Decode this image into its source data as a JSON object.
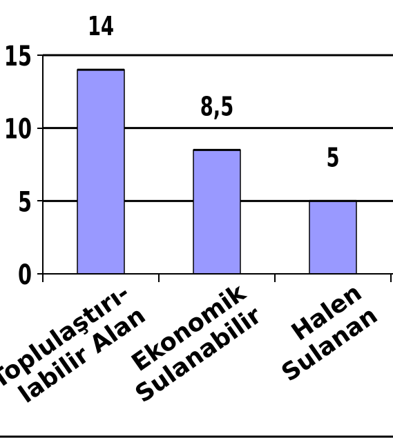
{
  "chart_data": {
    "type": "bar",
    "categories": [
      [
        "Toplulaştırı-",
        "labilir Alan"
      ],
      [
        "Ekonomik",
        "Sulanabilir"
      ],
      [
        "Halen",
        "Sulanan"
      ]
    ],
    "values": [
      14,
      8.5,
      5
    ],
    "data_labels": [
      "14",
      "8,5",
      "5"
    ],
    "y_ticks": [
      "0",
      "5",
      "10",
      "15"
    ],
    "ylim": [
      0,
      15
    ],
    "grid": true,
    "bar_color": "#9999ff",
    "bar_edge_color": "#000000",
    "title": "",
    "xlabel": "",
    "ylabel": ""
  }
}
